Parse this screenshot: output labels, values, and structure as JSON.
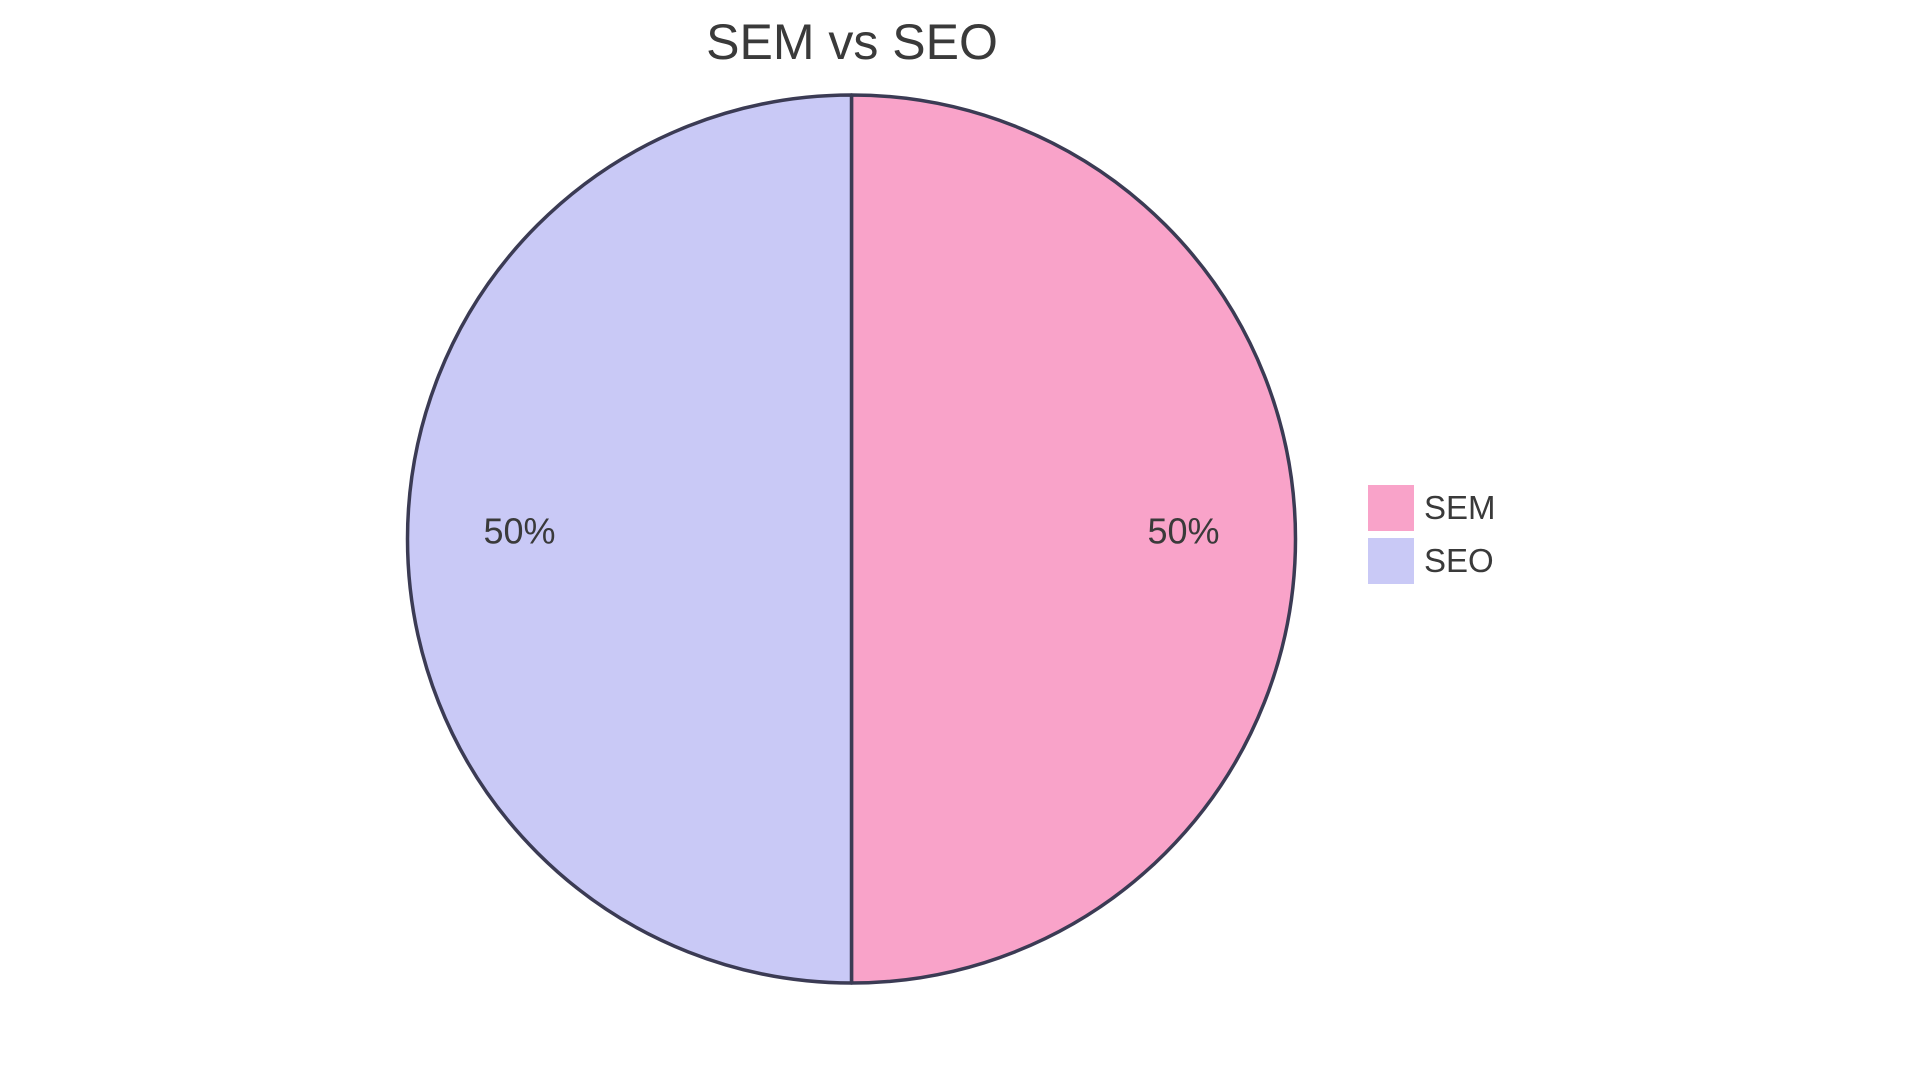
{
  "page": {
    "background": "#ffffff"
  },
  "chart_data": {
    "type": "pie",
    "title": "SEM vs SEO",
    "labels": [
      "SEM",
      "SEO"
    ],
    "values": [
      50,
      50
    ],
    "slice_labels": [
      "50%",
      "50%"
    ],
    "colors": [
      "#F9A3C9",
      "#C9C9F6"
    ],
    "border_color": "#3B3B54",
    "border_width": 3.5,
    "text_color": "#3A3A3A",
    "legend_position": "right",
    "start_angle_deg": -90,
    "direction": "clockwise",
    "grid": false
  }
}
